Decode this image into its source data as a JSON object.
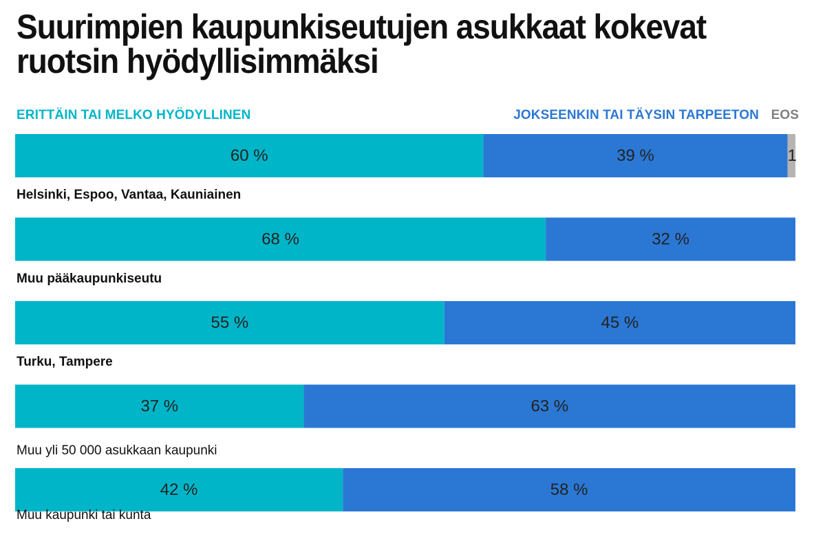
{
  "chart_data": {
    "type": "bar",
    "orientation": "horizontal",
    "stacked": true,
    "title": "Suurimpien kaupunkiseutujen asukkaat kokevat ruotsin hyödyllisimmäksi",
    "categories": [
      "Helsinki, Espoo, Vantaa, Kauniainen",
      "Muu pääkaupunkiseutu",
      "Turku, Tampere",
      "Muu yli 50 000 asukkaan kaupunki",
      "Muu kaupunki tai kunta"
    ],
    "series": [
      {
        "name": "ERITTÄIN TAI MELKO HYÖDYLLINEN",
        "values": [
          60,
          68,
          55,
          37,
          42
        ],
        "labels": [
          "60 %",
          "68 %",
          "55 %",
          "37 %",
          "42 %"
        ],
        "color": "#00b5c8"
      },
      {
        "name": "JOKSEENKIN TAI TÄYSIN TARPEETON",
        "values": [
          39,
          32,
          45,
          63,
          58
        ],
        "labels": [
          "39 %",
          "32 %",
          "45 %",
          "63 %",
          "58 %"
        ],
        "color": "#2b78d4"
      },
      {
        "name": "EOS",
        "values": [
          1,
          0,
          0,
          0,
          0
        ],
        "labels": [
          "1",
          "",
          "",
          "",
          ""
        ],
        "color": "#b4b4b4"
      }
    ],
    "xlim": [
      0,
      100
    ],
    "grid": false,
    "legend": "top"
  }
}
